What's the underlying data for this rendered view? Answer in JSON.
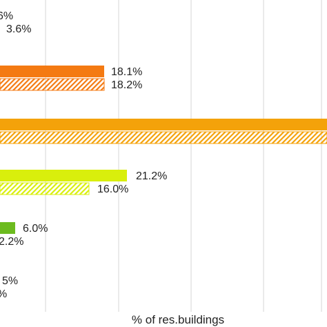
{
  "chart_data": {
    "type": "bar",
    "orientation": "horizontal",
    "xlabel": "% of res.buildings",
    "ylabel": "",
    "xlim": [
      -1.4,
      52
    ],
    "grid": true,
    "series": [
      {
        "name": "",
        "pattern": "solid"
      },
      {
        "name": "",
        "pattern": "hatched"
      }
    ],
    "groups": [
      {
        "color": "#8a8a8a",
        "values": [
          null,
          null
        ],
        "labels": [
          "6%",
          "3.6%"
        ]
      },
      {
        "color": "#f47a12",
        "values": [
          18.1,
          18.2
        ],
        "labels": [
          "18.1%",
          "18.2%"
        ]
      },
      {
        "color": "#f4a20a",
        "values": [
          null,
          null
        ],
        "labels": [
          "",
          ""
        ]
      },
      {
        "color": "#d9ef0c",
        "values": [
          21.2,
          16.0
        ],
        "labels": [
          "21.2%",
          "16.0%"
        ]
      },
      {
        "color": "#6cbb1f",
        "values": [
          6.0,
          2.2
        ],
        "labels": [
          "6.0%",
          "2.2%"
        ]
      },
      {
        "color": "#8a8a8a",
        "values": [
          null,
          null
        ],
        "labels": [
          "5%",
          "%"
        ]
      }
    ]
  }
}
